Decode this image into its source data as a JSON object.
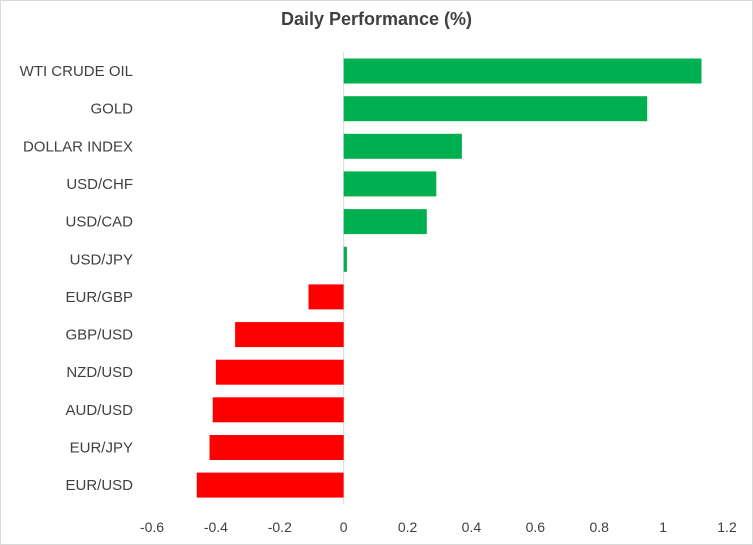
{
  "chart_data": {
    "type": "bar",
    "orientation": "horizontal",
    "title": "Daily Performance (%)",
    "xlabel": "",
    "ylabel": "",
    "categories": [
      "WTI CRUDE OIL",
      "GOLD",
      "DOLLAR INDEX",
      "USD/CHF",
      "USD/CAD",
      "USD/JPY",
      "EUR/GBP",
      "GBP/USD",
      "NZD/USD",
      "AUD/USD",
      "EUR/JPY",
      "EUR/USD"
    ],
    "values": [
      1.12,
      0.95,
      0.37,
      0.29,
      0.26,
      0.01,
      -0.11,
      -0.34,
      -0.4,
      -0.41,
      -0.42,
      -0.46
    ],
    "xlim": [
      -0.6,
      1.2
    ],
    "xticks": [
      "-0.6",
      "-0.4",
      "-0.2",
      "0",
      "0.2",
      "0.4",
      "0.6",
      "0.8",
      "1",
      "1.2"
    ],
    "grid": false,
    "legend": "none",
    "colors": {
      "positive": "#00b050",
      "negative": "#ff0000",
      "text": "#404040",
      "axis": "#d9d9d9"
    }
  }
}
